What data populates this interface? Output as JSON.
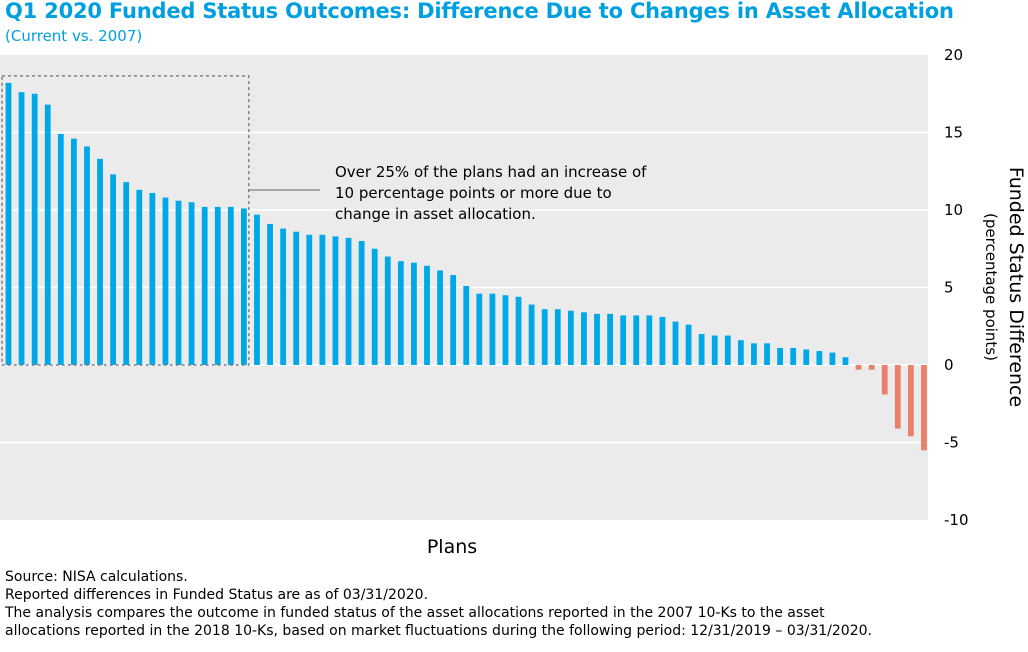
{
  "chart_data": {
    "type": "bar",
    "title": "Q1 2020 Funded Status Outcomes: Difference Due to Changes in Asset Allocation",
    "subtitle": "(Current vs. 2007)",
    "xlabel": "Plans",
    "ylabel": "Funded Status Difference",
    "ylabel_sub": "(percentage points)",
    "ylim": [
      -10,
      20
    ],
    "yticks": [
      "20",
      "15",
      "10",
      "5",
      "0",
      "-5",
      "-10"
    ],
    "ytick_values": [
      20,
      15,
      10,
      5,
      0,
      -5,
      -10
    ],
    "y_axis_side": "right",
    "grid": true,
    "values": [
      18.2,
      17.6,
      17.5,
      16.8,
      14.9,
      14.6,
      14.1,
      13.3,
      12.3,
      11.8,
      11.3,
      11.1,
      10.8,
      10.6,
      10.5,
      10.2,
      10.2,
      10.2,
      10.1,
      9.7,
      9.1,
      8.8,
      8.6,
      8.4,
      8.4,
      8.3,
      8.2,
      8.0,
      7.5,
      7.0,
      6.7,
      6.6,
      6.4,
      6.1,
      5.8,
      5.1,
      4.6,
      4.6,
      4.5,
      4.4,
      3.9,
      3.6,
      3.6,
      3.5,
      3.4,
      3.3,
      3.3,
      3.2,
      3.2,
      3.2,
      3.1,
      2.8,
      2.6,
      2.0,
      1.9,
      1.9,
      1.6,
      1.4,
      1.4,
      1.1,
      1.1,
      1.0,
      0.9,
      0.8,
      0.5,
      -0.3,
      -0.3,
      -1.9,
      -4.1,
      -4.6,
      -5.5
    ],
    "colors": {
      "positive": "#00a8e8",
      "negative": "#e8806c",
      "plot_bg": "#ebebeb",
      "grid": "#ffffff"
    },
    "annotation": {
      "lines": [
        "Over 25% of the plans had an increase of",
        "10 percentage points or more due to",
        "change in asset allocation."
      ],
      "bracket_bars": 19
    }
  },
  "footer": {
    "source": "Source: NISA calculations.",
    "note": "Reported differences in Funded Status are as of 03/31/2020.",
    "analysis_1": "The analysis compares the outcome in funded status of the asset allocations reported in the 2007 10-Ks to the asset",
    "analysis_2": "allocations reported in the 2018 10-Ks, based on market fluctuations during the following period: 12/31/2019 – 03/31/2020."
  }
}
